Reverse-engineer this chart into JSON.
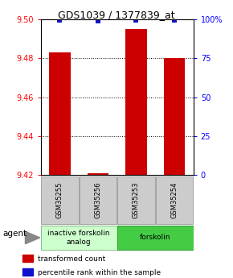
{
  "title": "GDS1039 / 1377839_at",
  "samples": [
    "GSM35255",
    "GSM35256",
    "GSM35253",
    "GSM35254"
  ],
  "transformed_counts": [
    9.483,
    9.421,
    9.495,
    9.48
  ],
  "percentile_ranks": [
    99.5,
    99.0,
    99.5,
    99.5
  ],
  "ylim_left": [
    9.42,
    9.5
  ],
  "ylim_right": [
    0,
    100
  ],
  "yticks_left": [
    9.42,
    9.44,
    9.46,
    9.48,
    9.5
  ],
  "yticks_right": [
    0,
    25,
    50,
    75,
    100
  ],
  "ytick_labels_right": [
    "0",
    "25",
    "50",
    "75",
    "100%"
  ],
  "bar_color": "#cc0000",
  "percentile_color": "#1111cc",
  "groups": [
    {
      "label": "inactive forskolin\nanalog",
      "samples": [
        0,
        1
      ],
      "color": "#ccffcc",
      "edge": "#88bb88"
    },
    {
      "label": "forskolin",
      "samples": [
        2,
        3
      ],
      "color": "#44cc44",
      "edge": "#339933"
    }
  ],
  "agent_label": "agent",
  "legend_red": "transformed count",
  "legend_blue": "percentile rank within the sample",
  "bar_width": 0.55,
  "background_color": "#ffffff",
  "sample_box_color": "#cccccc",
  "sample_box_edge": "#999999"
}
